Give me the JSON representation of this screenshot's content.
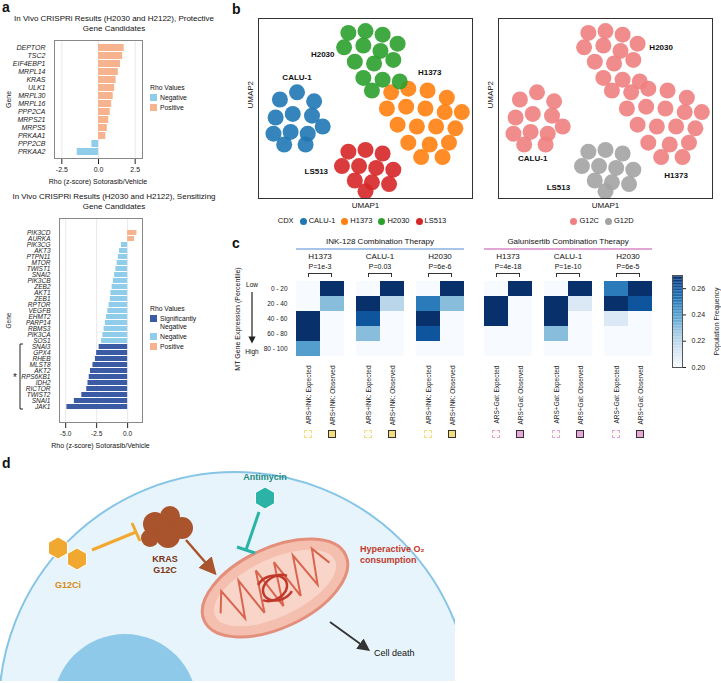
{
  "chart_data": [
    {
      "type": "bar",
      "panel": "a",
      "orientation": "horizontal",
      "title": "In Vivo CRISPRi Results (H2030 and H2122), Protective Gene Candidates",
      "x_label": "Rho (z-score) Sotorasib/Vehicle",
      "y_label": "Gene",
      "categories": [
        "DEPTOR",
        "TSC2",
        "EIF4EBP1",
        "MRPL14",
        "KRAS",
        "ULK1",
        "MRPL30",
        "MRPL16",
        "PPP2CA",
        "MRPS21",
        "MRPS5",
        "PRKAA1",
        "PPP2CB",
        "PRKAA2"
      ],
      "series": [
        {
          "name": "Negative",
          "color": "#8fcdea",
          "values": [
            null,
            null,
            null,
            null,
            null,
            null,
            null,
            null,
            null,
            null,
            null,
            null,
            -0.45,
            -1.45
          ]
        },
        {
          "name": "Positive",
          "color": "#f6b38d",
          "values": [
            1.75,
            1.65,
            1.5,
            1.35,
            1.2,
            1.1,
            1.0,
            0.9,
            0.8,
            0.7,
            0.6,
            0.5,
            null,
            null
          ]
        }
      ],
      "legend_title": "Rho Values",
      "legend": "right",
      "xlim": [
        -3,
        3
      ],
      "xticks": [
        -2.5,
        {
          "value": 0,
          "label": "0.0"
        },
        2.5
      ],
      "grid": true
    },
    {
      "type": "bar",
      "panel": "a",
      "orientation": "horizontal",
      "title": "In Vivo CRISPRi Results (H2030 and H2122), Sensitizing Gene Candidates",
      "x_label": "Rho (z-score) Sotorasib/Vehicle",
      "y_label": "Gene",
      "categories": [
        "PIK3CD",
        "AURKA",
        "PIK3CG",
        "AKT3",
        "PTPN11",
        "MTOR",
        "TWIST1",
        "SNAI2",
        "PIK3CB",
        "ZEB2",
        "AKT1",
        "ZEB1",
        "RPTOR",
        "VEGFB",
        "EHMT2",
        "PARP14",
        "RBMS3",
        "PIK3CA",
        "SOS1",
        "SNAI3",
        "GPX4",
        "RHEB",
        "MLST8",
        "AKT2",
        "RPS6KB1",
        "IDH2",
        "RICTOR",
        "TWIST2",
        "SNAI1",
        "JAK1"
      ],
      "series": [
        {
          "name": "Significantly Negative",
          "color": "#3b5ba5",
          "values": [
            null,
            null,
            null,
            null,
            null,
            null,
            null,
            null,
            null,
            null,
            null,
            null,
            null,
            null,
            null,
            null,
            null,
            null,
            null,
            -2.3,
            -2.5,
            -2.6,
            -2.8,
            -3.0,
            -3.1,
            -3.2,
            -3.3,
            -3.7,
            -4.3,
            -4.9
          ]
        },
        {
          "name": "Negative",
          "color": "#8fcdea",
          "values": [
            null,
            null,
            -0.5,
            -0.65,
            -0.75,
            -0.85,
            -0.95,
            -1.05,
            -1.15,
            -1.25,
            -1.35,
            -1.4,
            -1.5,
            -1.6,
            -1.7,
            -1.8,
            -1.9,
            -2.0,
            -2.1,
            null,
            null,
            null,
            null,
            null,
            null,
            null,
            null,
            null,
            null,
            null
          ]
        },
        {
          "name": "Positive",
          "color": "#f6b38d",
          "values": [
            0.75,
            0.55,
            null,
            null,
            null,
            null,
            null,
            null,
            null,
            null,
            null,
            null,
            null,
            null,
            null,
            null,
            null,
            null,
            null,
            null,
            null,
            null,
            null,
            null,
            null,
            null,
            null,
            null,
            null,
            null
          ]
        }
      ],
      "bracket": {
        "label": "*",
        "categories": [
          "SNAI3",
          "GPX4",
          "RHEB",
          "MLST8",
          "AKT2",
          "RPS6KB1",
          "IDH2",
          "RICTOR",
          "TWIST2",
          "SNAI1",
          "JAK1"
        ]
      },
      "legend_title": "Rho Values",
      "legend": "right",
      "xlim": [
        -5.5,
        1.2
      ],
      "xticks": [
        {
          "value": -5,
          "label": "-5.0"
        },
        -2.5,
        {
          "value": 0,
          "label": "0.0"
        }
      ],
      "grid": true
    },
    {
      "type": "scatter",
      "panel": "b",
      "x_label": "UMAP1",
      "y_label": "UMAP2",
      "xlim": [
        0,
        10
      ],
      "ylim": [
        0,
        10
      ],
      "tick_labels": false,
      "legend_title": "CDX",
      "legend": "bottom",
      "series": [
        {
          "name": "CALU-1",
          "color": "#1f77b4",
          "x": [
            1.0,
            1.8,
            2.6,
            0.8,
            1.6,
            2.5,
            3.0,
            0.7,
            1.5,
            2.3,
            1.2,
            2.2
          ],
          "y": [
            5.5,
            5.9,
            5.4,
            4.5,
            4.7,
            4.6,
            4.0,
            3.6,
            3.7,
            3.6,
            3.0,
            3.0
          ]
        },
        {
          "name": "H1373",
          "color": "#ff7f0e",
          "x": [
            6.2,
            7.0,
            7.9,
            8.8,
            6.0,
            6.9,
            7.8,
            8.7,
            9.5,
            6.5,
            7.4,
            8.3,
            9.2,
            7.0,
            8.0,
            8.9,
            7.6,
            8.6
          ],
          "y": [
            5.9,
            6.1,
            6.0,
            5.6,
            5.0,
            5.1,
            5.0,
            4.8,
            4.8,
            4.1,
            4.0,
            4.0,
            3.9,
            3.1,
            3.0,
            3.1,
            2.3,
            2.3
          ]
        },
        {
          "name": "H2030",
          "color": "#2ca02c",
          "x": [
            4.2,
            5.0,
            5.8,
            6.5,
            4.0,
            4.9,
            5.7,
            4.5,
            5.4,
            6.3,
            4.9,
            5.8,
            5.3,
            6.6
          ],
          "y": [
            9.2,
            9.3,
            9.1,
            8.6,
            8.4,
            8.5,
            8.2,
            7.6,
            7.5,
            7.7,
            6.7,
            6.6,
            6.0,
            6.5
          ]
        },
        {
          "name": "LS513",
          "color": "#d62728",
          "x": [
            4.2,
            5.0,
            5.8,
            3.9,
            4.7,
            5.5,
            6.3,
            4.5,
            5.3,
            6.1,
            5.0
          ],
          "y": [
            2.6,
            2.7,
            2.5,
            1.8,
            1.8,
            1.7,
            1.6,
            1.0,
            0.9,
            0.8,
            0.4
          ]
        }
      ],
      "annotations": [
        {
          "text": "CALU-1",
          "x": 1.8,
          "y": 6.7
        },
        {
          "text": "H2030",
          "x": 3.0,
          "y": 8.0
        },
        {
          "text": "H1373",
          "x": 8.0,
          "y": 7.0
        },
        {
          "text": "LS513",
          "x": 2.7,
          "y": 1.5
        }
      ]
    },
    {
      "type": "scatter",
      "panel": "b",
      "x_label": "UMAP1",
      "y_label": "UMAP2",
      "xlim": [
        0,
        10
      ],
      "ylim": [
        0,
        10
      ],
      "tick_labels": false,
      "legend": "bottom",
      "series": [
        {
          "name": "G12C",
          "color": "#f08080",
          "x": [
            1.0,
            1.8,
            2.6,
            0.8,
            1.6,
            2.5,
            3.0,
            0.7,
            1.5,
            2.3,
            1.2,
            2.2,
            6.2,
            7.0,
            7.9,
            8.8,
            6.0,
            6.9,
            7.8,
            8.7,
            9.5,
            6.5,
            7.4,
            8.3,
            9.2,
            7.0,
            8.0,
            8.9,
            7.6,
            8.6,
            4.2,
            5.0,
            5.8,
            6.5,
            4.0,
            4.9,
            5.7,
            4.5,
            5.4,
            6.3,
            4.9,
            5.8,
            5.3,
            6.6
          ],
          "y": [
            5.5,
            5.9,
            5.4,
            4.5,
            4.7,
            4.6,
            4.0,
            3.6,
            3.7,
            3.6,
            3.0,
            3.0,
            5.9,
            6.1,
            6.0,
            5.6,
            5.0,
            5.1,
            5.0,
            4.8,
            4.8,
            4.1,
            4.0,
            4.0,
            3.9,
            3.1,
            3.0,
            3.1,
            2.3,
            2.3,
            9.2,
            9.3,
            9.1,
            8.6,
            8.4,
            8.5,
            8.2,
            7.6,
            7.5,
            7.7,
            6.7,
            6.6,
            6.0,
            6.5
          ]
        },
        {
          "name": "G12D",
          "color": "#a3a3a3",
          "x": [
            4.2,
            5.0,
            5.8,
            3.9,
            4.7,
            5.5,
            6.3,
            4.5,
            5.3,
            6.1,
            5.0
          ],
          "y": [
            2.6,
            2.7,
            2.5,
            1.8,
            1.8,
            1.7,
            1.6,
            1.0,
            0.9,
            0.8,
            0.4
          ]
        }
      ],
      "annotations": [
        {
          "text": "CALU-1",
          "x": 1.6,
          "y": 2.2
        },
        {
          "text": "H2030",
          "x": 7.6,
          "y": 8.4
        },
        {
          "text": "H1373",
          "x": 8.3,
          "y": 1.3
        },
        {
          "text": "LS513",
          "x": 2.8,
          "y": 0.6
        }
      ]
    },
    {
      "type": "heatmap",
      "panel": "c",
      "y_label": "MT Gene Expression (Percentile)",
      "low_label": "Low",
      "high_label": "High",
      "rows": [
        "0 - 20",
        "20 - 40",
        "40 - 60",
        "60 - 80",
        "80 - 100"
      ],
      "colorbar": {
        "label": "Population Frequency",
        "range": [
          0.2,
          0.27
        ],
        "ticks": [
          {
            "value": 0.2,
            "label": "0.20"
          },
          0.22,
          0.24,
          0.26
        ]
      },
      "groups": [
        {
          "name": "INK-128 Combination Therapy",
          "color": "#f2dc7d",
          "panels": [
            {
              "title": "H1373",
              "p_value": "P=1e-3",
              "columns": [
                "ARS+INK: Expected",
                "ARS+INK: Observed"
              ],
              "cells": [
                [
                  0.19,
                  0.28
                ],
                [
                  0.19,
                  0.23
                ],
                [
                  0.27,
                  0.19
                ],
                [
                  0.27,
                  0.18
                ],
                [
                  0.24,
                  0.18
                ]
              ]
            },
            {
              "title": "CALU-1",
              "p_value": "P=0.03",
              "columns": [
                "ARS+INK: Expected",
                "ARS+INK: Observed"
              ],
              "cells": [
                [
                  0.19,
                  0.28
                ],
                [
                  0.27,
                  0.22
                ],
                [
                  0.26,
                  0.19
                ],
                [
                  0.23,
                  0.19
                ],
                [
                  0.18,
                  0.18
                ]
              ]
            },
            {
              "title": "H2030",
              "p_value": "P=6e-6",
              "columns": [
                "ARS+INK: Expected",
                "ARS+INK: Observed"
              ],
              "cells": [
                [
                  0.2,
                  0.28
                ],
                [
                  0.25,
                  0.23
                ],
                [
                  0.27,
                  0.19
                ],
                [
                  0.26,
                  0.18
                ],
                [
                  0.19,
                  0.18
                ]
              ]
            }
          ]
        },
        {
          "name": "Galunisertib Combination Therapy",
          "color": "#e7a6d8",
          "panels": [
            {
              "title": "H1373",
              "p_value": "P=4e-18",
              "columns": [
                "ARS+Gal: Expected",
                "ARS+Gal: Observed"
              ],
              "cells": [
                [
                  0.19,
                  0.28
                ],
                [
                  0.27,
                  0.2
                ],
                [
                  0.27,
                  0.19
                ],
                [
                  0.19,
                  0.18
                ],
                [
                  0.18,
                  0.18
                ]
              ]
            },
            {
              "title": "CALU-1",
              "p_value": "P=1e-10",
              "columns": [
                "ARS+Gal: Expected",
                "ARS+Gal: Observed"
              ],
              "cells": [
                [
                  0.19,
                  0.28
                ],
                [
                  0.27,
                  0.21
                ],
                [
                  0.27,
                  0.19
                ],
                [
                  0.23,
                  0.18
                ],
                [
                  0.18,
                  0.18
                ]
              ]
            },
            {
              "title": "H2030",
              "p_value": "P=6e-5",
              "columns": [
                "ARS+Gal: Expected",
                "ARS+Gal: Observed"
              ],
              "cells": [
                [
                  0.25,
                  0.27
                ],
                [
                  0.27,
                  0.26
                ],
                [
                  0.21,
                  0.19
                ],
                [
                  0.19,
                  0.18
                ],
                [
                  0.18,
                  0.18
                ]
              ]
            }
          ]
        }
      ]
    }
  ],
  "diagram": {
    "panel": "d",
    "antimycin": "Antimycin",
    "kras": "KRAS G12C",
    "inhibitor": "G12Ci",
    "oxygen": "Hyperactive O₂ consumption",
    "death": "Cell death"
  }
}
